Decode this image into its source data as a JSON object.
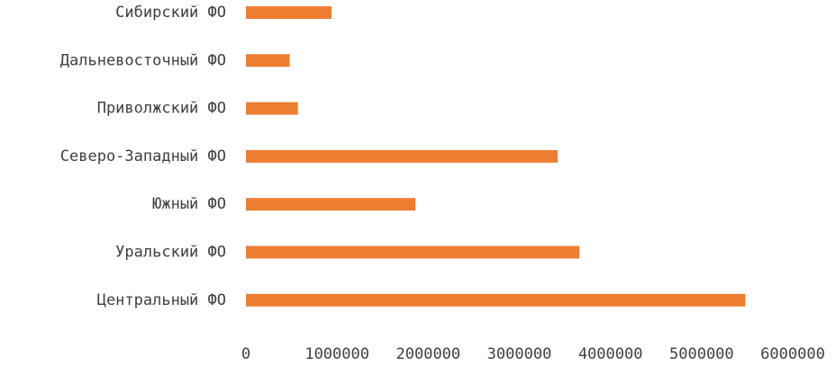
{
  "chart_data": {
    "type": "bar",
    "orientation": "horizontal",
    "categories": [
      "Сибирский ФО",
      "Дальневосточный ФО",
      "Приволжский ФО",
      "Северо-Западный ФО",
      "Южный ФО",
      "Уральский ФО",
      "Центральный ФО"
    ],
    "values": [
      940000,
      480000,
      570000,
      3420000,
      1860000,
      3660000,
      5480000
    ],
    "xlim": [
      0,
      6000000
    ],
    "xticks": [
      "0",
      "1000000",
      "2000000",
      "3000000",
      "4000000",
      "5000000",
      "6000000"
    ],
    "grid": false,
    "legend": false,
    "colors": {
      "bar": "#ED7D31",
      "text": "#404040"
    }
  }
}
